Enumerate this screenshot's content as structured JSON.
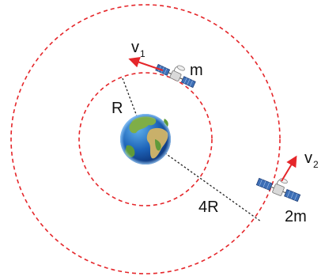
{
  "labels": {
    "inner_radius": "R",
    "outer_radius": "4R",
    "inner_mass": "m",
    "outer_mass": "2m",
    "inner_velocity_symbol": "v",
    "inner_velocity_index": "1",
    "outer_velocity_symbol": "v",
    "outer_velocity_index": "2"
  },
  "colors": {
    "orbit": "#e5262a",
    "velocity_arrow": "#e5262a",
    "radius_line": "#222222",
    "earth_ocean": "#1d63b8",
    "earth_land": "#5f9a3a",
    "satellite_panel": "#3d6fb6"
  },
  "icons": {
    "center_body": "earth-globe-icon",
    "inner_body": "satellite-icon",
    "outer_body": "satellite-icon"
  }
}
